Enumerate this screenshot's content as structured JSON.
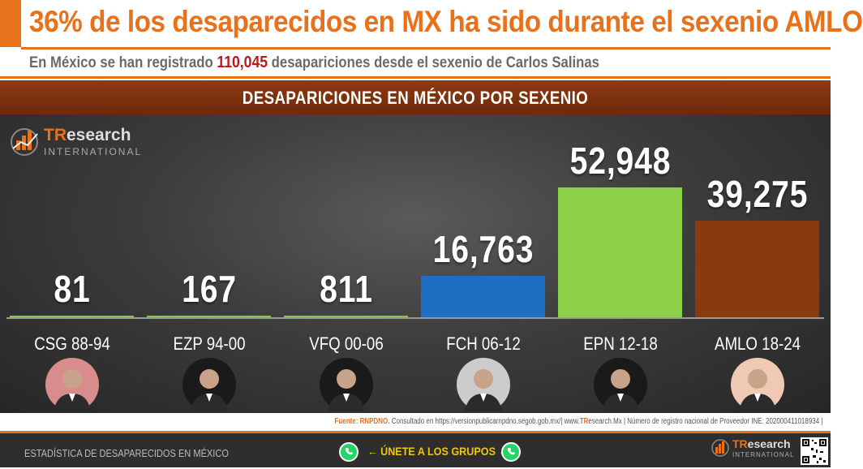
{
  "header": {
    "title": "36% de los desaparecidos en MX ha sido durante el sexenio AMLO",
    "subtitle_pre": "En México se han registrado",
    "subtitle_num": "110,045",
    "subtitle_post": "desapariciones desde el sexenio de Carlos Salinas"
  },
  "banner": {
    "title": "DESAPARICIONES EN MÉXICO POR SEXENIO"
  },
  "logo": {
    "name_tr": "TR",
    "name_rest": "esearch",
    "tagline": "INTERNATIONAL"
  },
  "chart_data": {
    "type": "bar",
    "title": "DESAPARICIONES EN MÉXICO POR SEXENIO",
    "categories": [
      "CSG 88-94",
      "EZP 94-00",
      "VFQ 00-06",
      "FCH 06-12",
      "EPN 12-18",
      "AMLO 18-24"
    ],
    "values": [
      81,
      167,
      811,
      16763,
      52948,
      39275
    ],
    "value_labels": [
      "81",
      "167",
      "811",
      "16,763",
      "52,948",
      "39,275"
    ],
    "bar_colors": [
      "#8bc34a",
      "#8bc34a",
      "#8bc34a",
      "#1e6fc4",
      "#8ed24a",
      "#8a3a10"
    ],
    "ylim": [
      0,
      60000
    ],
    "grid": false
  },
  "source": {
    "label": "Fuente:",
    "org": "RNPDNO.",
    "text": "Consultado en https://versionpublicarnpdno.segob.gob.mx/| www.",
    "site_tr": "TR",
    "site_rest": "esearch.Mx | Número de registro nacional de Proveedor INE: 202000411018934 |"
  },
  "footer": {
    "left": "ESTADÍSTICA DE DESAPARECIDOS EN MÉXICO",
    "join": "← ÚNETE A LOS GRUPOS →"
  }
}
